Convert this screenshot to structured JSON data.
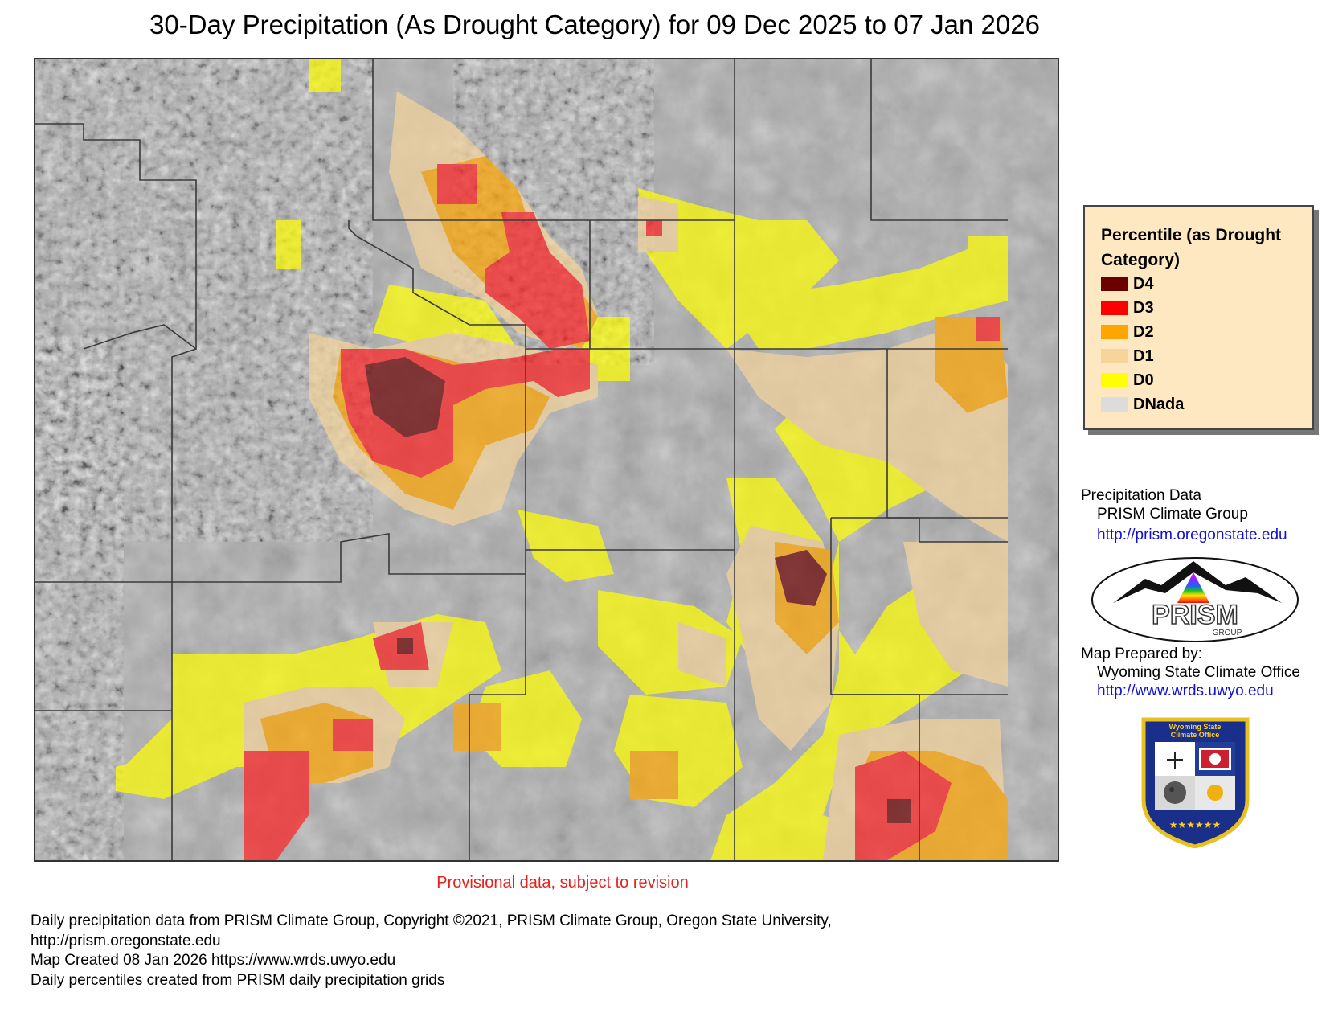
{
  "title": "30-Day Precipitation (As Drought Category) for 09 Dec 2025 to 07 Jan 2026",
  "provisional_note": "Provisional data, subject to revision",
  "legend": {
    "title": "Percentile (as Drought Category)",
    "items": [
      {
        "label": "D4",
        "color": "#6a0000"
      },
      {
        "label": "D3",
        "color": "#ff0000"
      },
      {
        "label": "D2",
        "color": "#ffa500"
      },
      {
        "label": "D1",
        "color": "#f6d49a"
      },
      {
        "label": "D0",
        "color": "#ffff00"
      },
      {
        "label": "DNada",
        "color": "#dcdcdc"
      }
    ]
  },
  "credits": {
    "precip_heading": "Precipitation Data",
    "precip_source": "PRISM Climate Group",
    "precip_url": "http://prism.oregonstate.edu",
    "prepared_heading": "Map Prepared by:",
    "prepared_by": "Wyoming State Climate Office",
    "prepared_url": "http://www.wrds.uwyo.edu"
  },
  "logos": {
    "prism_text": "PRISM",
    "prism_subtext": "GROUP",
    "wsco_text_line1": "Wyoming State",
    "wsco_text_line2": "Climate Office"
  },
  "footer": {
    "line1": "Daily precipitation data from PRISM Climate Group, Copyright ©2021, PRISM Climate Group, Oregon State University,",
    "line2": "http://prism.oregonstate.edu",
    "line3": "Map Created 08 Jan 2026 https://www.wrds.uwyo.edu",
    "line4": "Daily percentiles created from PRISM daily precipitation grids"
  }
}
